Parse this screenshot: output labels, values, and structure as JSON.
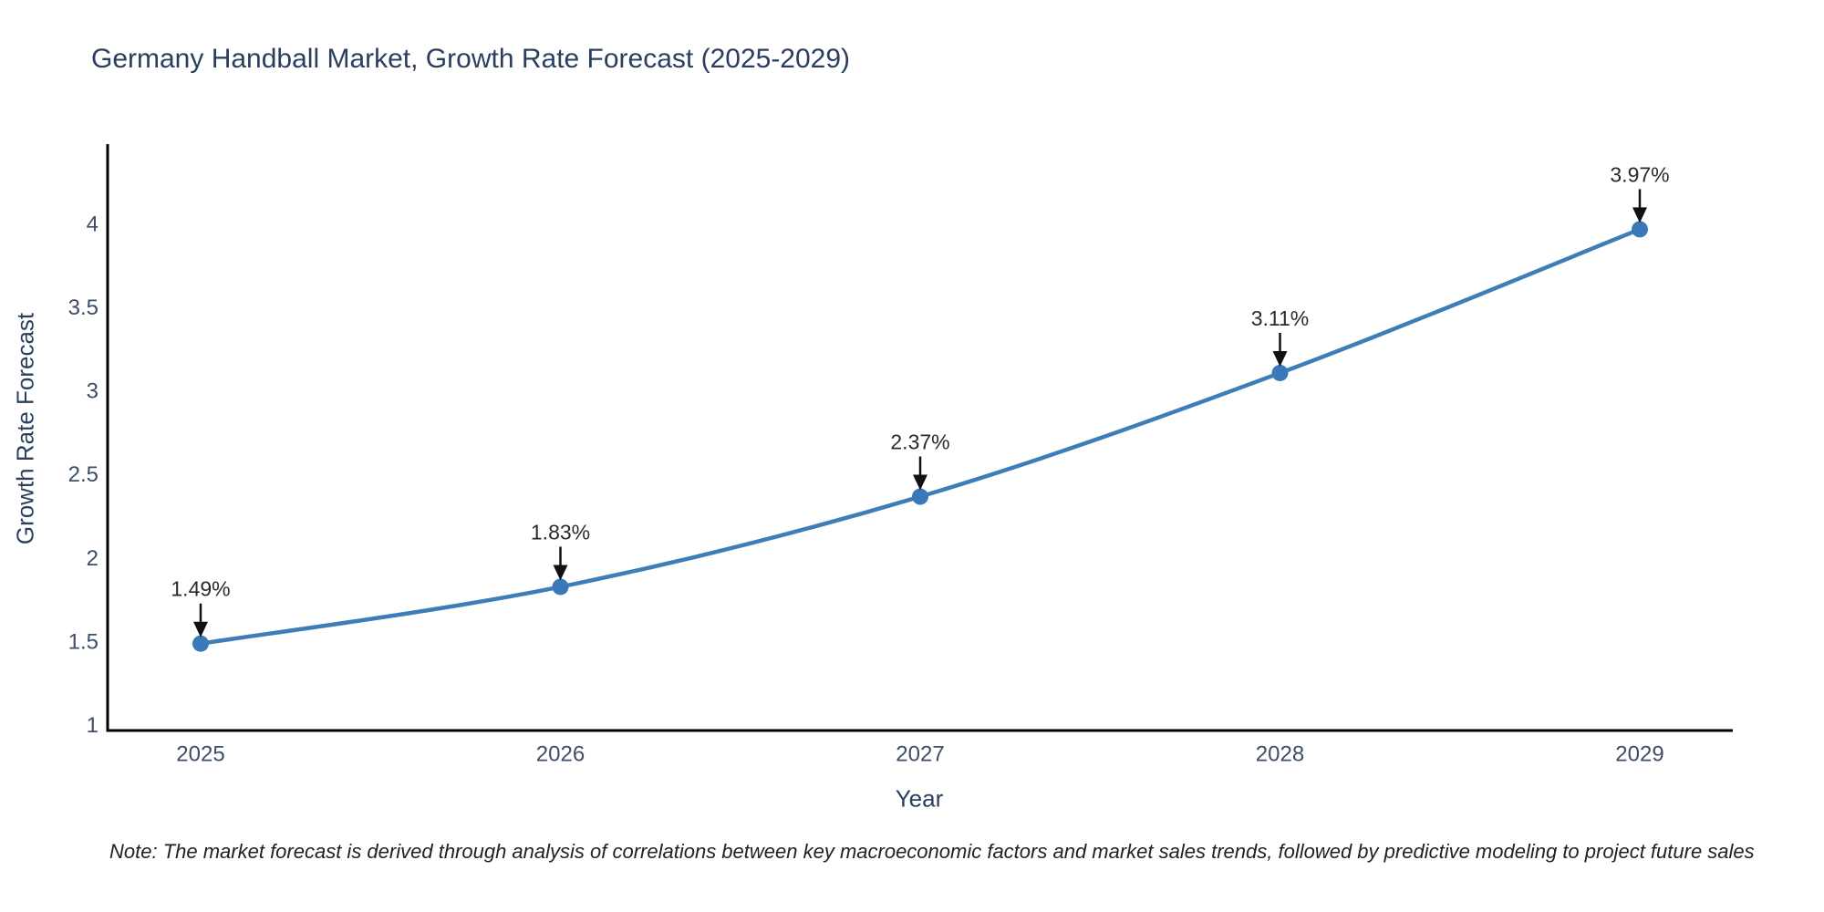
{
  "page": {
    "note": "Note: The market forecast is derived through analysis of correlations between key macroeconomic factors and market sales trends, followed by predictive modeling to project future sales"
  },
  "chart_data": {
    "type": "line",
    "title": "Germany Handball Market, Growth Rate Forecast (2025-2029)",
    "xlabel": "Year",
    "ylabel": "Growth Rate Forecast",
    "categories": [
      "2025",
      "2026",
      "2027",
      "2028",
      "2029"
    ],
    "values": [
      1.49,
      1.83,
      2.37,
      3.11,
      3.97
    ],
    "point_labels": [
      "1.49%",
      "1.83%",
      "2.37%",
      "3.11%",
      "3.97%"
    ],
    "yticks": [
      1,
      1.5,
      2,
      2.5,
      3,
      3.5,
      4
    ],
    "ytick_labels": [
      "1",
      "1.5",
      "2",
      "2.5",
      "3",
      "3.5",
      "4"
    ],
    "ylim": [
      0.97,
      4.48
    ],
    "grid": false,
    "legend": null,
    "line_shape": "spline",
    "colors": {
      "line": "#3f7db8",
      "marker": "#3a79b8",
      "axis": "#000000",
      "title": "#2a3f5f",
      "tick": "#3d4e66",
      "annotation": "#2a2a2a",
      "arrow": "#111111"
    }
  }
}
